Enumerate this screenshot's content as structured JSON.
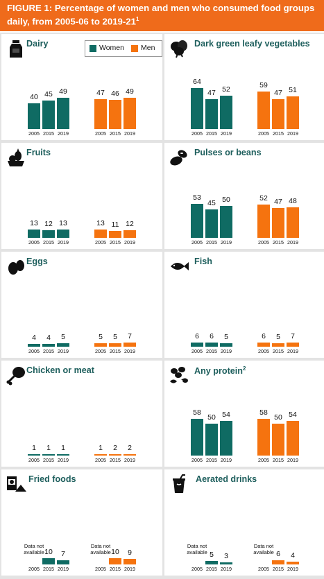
{
  "title_main": "FIGURE 1:  Percentage of women and men who consumed food groups daily, from 2005-06 to 2019-21",
  "title_sup": "1",
  "legend": {
    "women": "Women",
    "men": "Men"
  },
  "colors": {
    "banner": "#ef6b1b",
    "women": "#0f6b63",
    "men": "#f5730f",
    "title": "#1d5e5c"
  },
  "na_label": "Data not available",
  "chart_data": [
    {
      "type": "bar",
      "title": "Dairy",
      "icon": "milk-bottle-icon",
      "categories": [
        "2005",
        "2015",
        "2019"
      ],
      "series": [
        {
          "name": "Women",
          "values": [
            40,
            45,
            49
          ]
        },
        {
          "name": "Men",
          "values": [
            47,
            46,
            49
          ]
        }
      ]
    },
    {
      "type": "bar",
      "title": "Dark green leafy vegetables",
      "icon": "leafy-greens-icon",
      "categories": [
        "2005",
        "2015",
        "2019"
      ],
      "series": [
        {
          "name": "Women",
          "values": [
            64,
            47,
            52
          ]
        },
        {
          "name": "Men",
          "values": [
            59,
            47,
            51
          ]
        }
      ]
    },
    {
      "type": "bar",
      "title": "Fruits",
      "icon": "fruit-basket-icon",
      "categories": [
        "2005",
        "2015",
        "2019"
      ],
      "series": [
        {
          "name": "Women",
          "values": [
            13,
            12,
            13
          ]
        },
        {
          "name": "Men",
          "values": [
            13,
            11,
            12
          ]
        }
      ]
    },
    {
      "type": "bar",
      "title": "Pulses or beans",
      "icon": "beans-icon",
      "categories": [
        "2005",
        "2015",
        "2019"
      ],
      "series": [
        {
          "name": "Women",
          "values": [
            53,
            45,
            50
          ]
        },
        {
          "name": "Men",
          "values": [
            52,
            47,
            48
          ]
        }
      ]
    },
    {
      "type": "bar",
      "title": "Eggs",
      "icon": "eggs-icon",
      "categories": [
        "2005",
        "2015",
        "2019"
      ],
      "series": [
        {
          "name": "Women",
          "values": [
            4,
            4,
            5
          ]
        },
        {
          "name": "Men",
          "values": [
            5,
            5,
            7
          ]
        }
      ]
    },
    {
      "type": "bar",
      "title": "Fish",
      "icon": "fish-icon",
      "categories": [
        "2005",
        "2015",
        "2019"
      ],
      "series": [
        {
          "name": "Women",
          "values": [
            6,
            6,
            5
          ]
        },
        {
          "name": "Men",
          "values": [
            6,
            5,
            7
          ]
        }
      ]
    },
    {
      "type": "bar",
      "title": "Chicken or meat",
      "icon": "chicken-leg-icon",
      "categories": [
        "2005",
        "2015",
        "2019"
      ],
      "series": [
        {
          "name": "Women",
          "values": [
            1,
            1,
            1
          ]
        },
        {
          "name": "Men",
          "values": [
            1,
            2,
            2
          ]
        }
      ]
    },
    {
      "type": "bar",
      "title": "Any protein",
      "title_sup": "2",
      "icon": "protein-foods-icon",
      "categories": [
        "2005",
        "2015",
        "2019"
      ],
      "series": [
        {
          "name": "Women",
          "values": [
            58,
            50,
            54
          ]
        },
        {
          "name": "Men",
          "values": [
            58,
            50,
            54
          ]
        }
      ]
    },
    {
      "type": "bar",
      "title": "Fried foods",
      "icon": "chips-bag-icon",
      "categories": [
        "2005",
        "2015",
        "2019"
      ],
      "series": [
        {
          "name": "Women",
          "values": [
            null,
            10,
            7
          ]
        },
        {
          "name": "Men",
          "values": [
            null,
            10,
            9
          ]
        }
      ]
    },
    {
      "type": "bar",
      "title": "Aerated drinks",
      "icon": "soda-cup-icon",
      "categories": [
        "2005",
        "2015",
        "2019"
      ],
      "series": [
        {
          "name": "Women",
          "values": [
            null,
            5,
            3
          ]
        },
        {
          "name": "Men",
          "values": [
            null,
            6,
            4
          ]
        }
      ]
    }
  ]
}
